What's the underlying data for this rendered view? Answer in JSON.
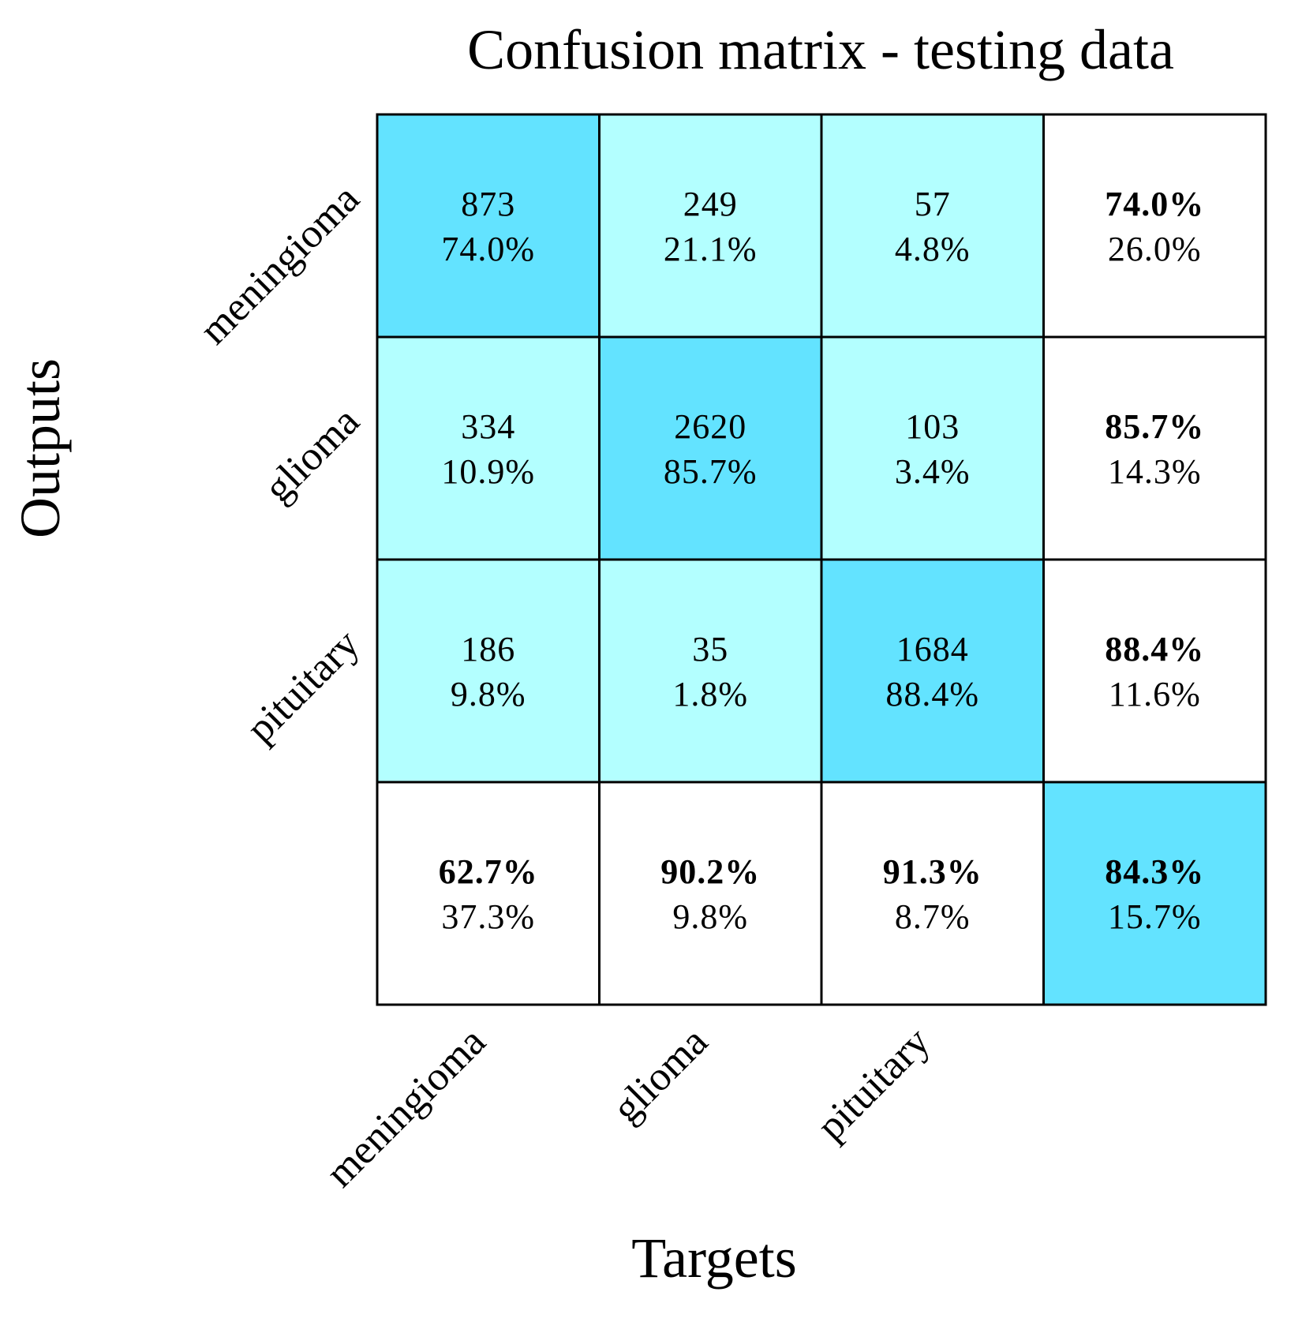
{
  "chart_data": {
    "type": "heatmap",
    "title": "Confusion matrix - testing data",
    "xlabel": "Targets",
    "ylabel": "Outputs",
    "classes": [
      "meningioma",
      "glioma",
      "pituitary"
    ],
    "colors": {
      "diagonal": "#63e3ff",
      "off_diagonal": "#b3ffff",
      "summary": "#ffffff",
      "total": "#63e3ff",
      "grid": "#000000"
    },
    "matrix": [
      [
        {
          "count": "873",
          "percent": "74.0%"
        },
        {
          "count": "249",
          "percent": "21.1%"
        },
        {
          "count": "57",
          "percent": "4.8%"
        }
      ],
      [
        {
          "count": "334",
          "percent": "10.9%"
        },
        {
          "count": "2620",
          "percent": "85.7%"
        },
        {
          "count": "103",
          "percent": "3.4%"
        }
      ],
      [
        {
          "count": "186",
          "percent": "9.8%"
        },
        {
          "count": "35",
          "percent": "1.8%"
        },
        {
          "count": "1684",
          "percent": "88.4%"
        }
      ]
    ],
    "row_summary": [
      {
        "correct": "74.0%",
        "incorrect": "26.0%"
      },
      {
        "correct": "85.7%",
        "incorrect": "14.3%"
      },
      {
        "correct": "88.4%",
        "incorrect": "11.6%"
      }
    ],
    "column_summary": [
      {
        "correct": "62.7%",
        "incorrect": "37.3%"
      },
      {
        "correct": "90.2%",
        "incorrect": "9.8%"
      },
      {
        "correct": "91.3%",
        "incorrect": "8.7%"
      }
    ],
    "overall": {
      "correct": "84.3%",
      "incorrect": "15.7%"
    }
  }
}
